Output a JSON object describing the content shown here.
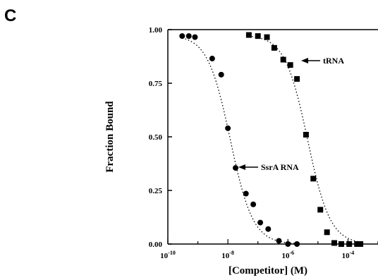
{
  "panel_label": "C",
  "chart_data": {
    "type": "scatter",
    "xlabel": "[Competitor] (M)",
    "ylabel": "Fraction Bound",
    "x_scale": "log",
    "xlim": [
      1e-10,
      0.001
    ],
    "ylim": [
      0,
      1
    ],
    "x_ticks": [
      {
        "base": "10",
        "exp": "-10",
        "value": 1e-10
      },
      {
        "base": "10",
        "exp": "-8",
        "value": 1e-08
      },
      {
        "base": "10",
        "exp": "-6",
        "value": 1e-06
      },
      {
        "base": "10",
        "exp": "-4",
        "value": 0.0001
      }
    ],
    "y_ticks": [
      "0.00",
      "0.25",
      "0.50",
      "0.75",
      "1.00"
    ],
    "y_tick_values": [
      0,
      0.25,
      0.5,
      0.75,
      1.0
    ],
    "grid": false,
    "series": [
      {
        "name": "SsrA RNA",
        "marker": "circle",
        "fit": "dotted",
        "x": [
          3e-10,
          5e-10,
          8e-10,
          3e-09,
          6e-09,
          1e-08,
          1.8e-08,
          4e-08,
          7e-08,
          1.2e-07,
          2.2e-07,
          5e-07,
          1e-06,
          2e-06
        ],
        "y": [
          0.97,
          0.97,
          0.965,
          0.865,
          0.79,
          0.54,
          0.355,
          0.235,
          0.185,
          0.1,
          0.07,
          0.015,
          0.0,
          0.0
        ],
        "ic50": 1.2e-08
      },
      {
        "name": "tRNA",
        "marker": "square",
        "fit": "dotted",
        "x": [
          5e-08,
          1e-07,
          2e-07,
          3.5e-07,
          7e-07,
          1.2e-06,
          2e-06,
          4e-06,
          7e-06,
          1.2e-05,
          2e-05,
          3.5e-05,
          6e-05,
          0.00011,
          0.0002,
          0.00026
        ],
        "y": [
          0.975,
          0.97,
          0.965,
          0.915,
          0.86,
          0.835,
          0.77,
          0.51,
          0.305,
          0.16,
          0.055,
          0.005,
          0.0,
          0.0,
          0.0,
          0.0
        ],
        "ic50": 4.5e-06
      }
    ],
    "annotations": [
      {
        "text": "tRNA",
        "series": "tRNA"
      },
      {
        "text": "SsrA RNA",
        "series": "SsrA RNA"
      }
    ]
  }
}
